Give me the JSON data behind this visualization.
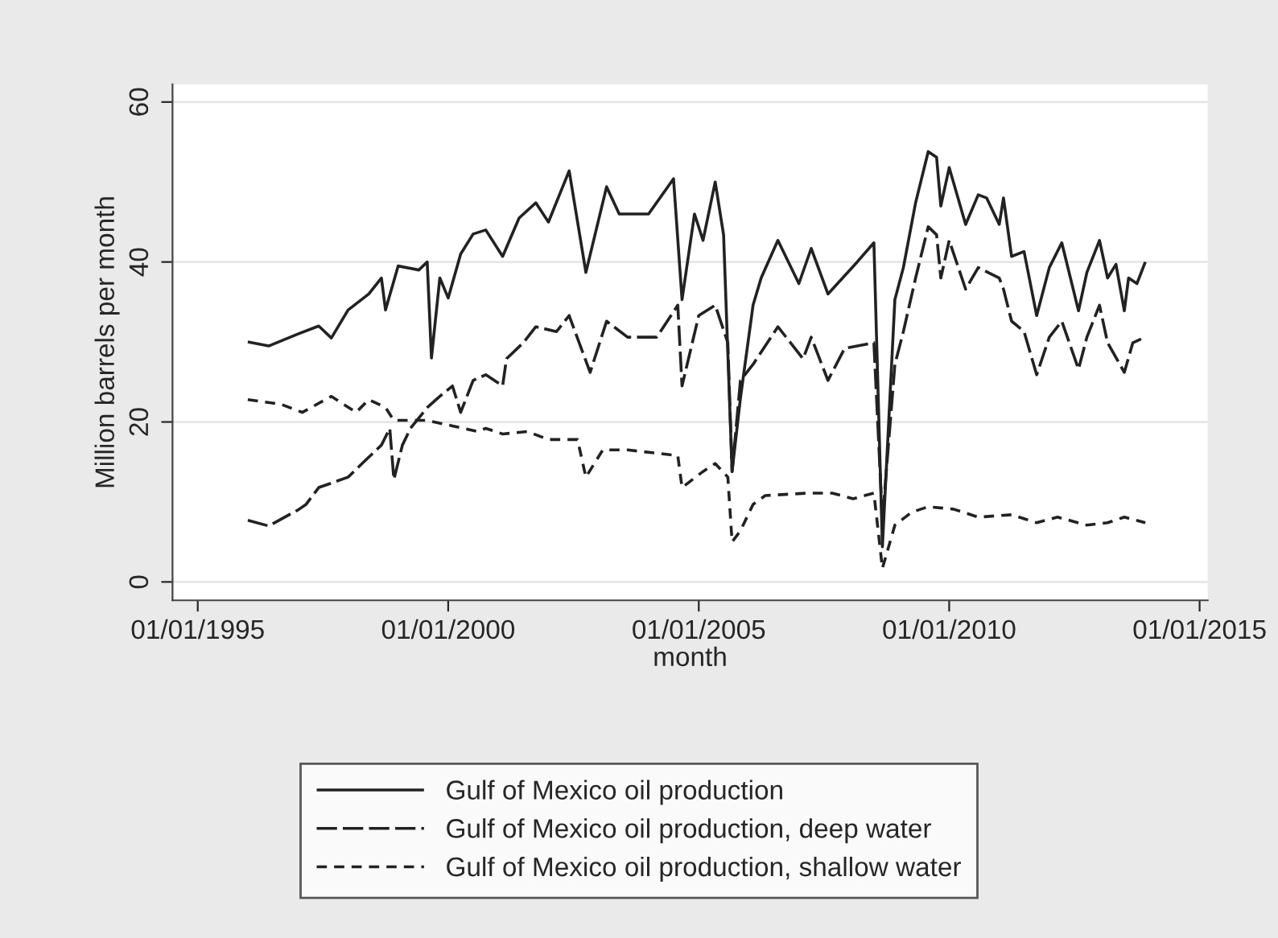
{
  "chart_data": {
    "type": "line",
    "xlabel": "month",
    "ylabel": "Million barrels per month",
    "xlim": [
      "1994-07",
      "2015-03"
    ],
    "ylim": [
      -2.3,
      62.2
    ],
    "xticks": [
      {
        "value": "1995-01-01",
        "label": "01/01/1995"
      },
      {
        "value": "2000-01-01",
        "label": "01/01/2000"
      },
      {
        "value": "2005-01-01",
        "label": "01/01/2005"
      },
      {
        "value": "2010-01-01",
        "label": "01/01/2010"
      },
      {
        "value": "2015-01-01",
        "label": "01/01/2015"
      }
    ],
    "yticks": [
      0,
      20,
      40,
      60
    ],
    "grid": "y",
    "legend": "bottom",
    "series": [
      {
        "name": "Gulf of Mexico oil production",
        "color": "#222222",
        "line_style": "solid",
        "x": [
          "1996-01",
          "1996-06",
          "1997-01",
          "1997-06",
          "1997-09",
          "1998-01",
          "1998-06",
          "1998-09",
          "1998-10",
          "1999-01",
          "1999-06",
          "1999-08",
          "1999-09",
          "1999-11",
          "2000-01",
          "2000-04",
          "2000-07",
          "2000-10",
          "2001-02",
          "2001-06",
          "2001-10",
          "2002-01",
          "2002-06",
          "2002-10",
          "2003-03",
          "2003-06",
          "2004-01",
          "2004-07",
          "2004-09",
          "2004-12",
          "2005-02",
          "2005-05",
          "2005-07",
          "2005-09",
          "2005-11",
          "2006-02",
          "2006-04",
          "2006-08",
          "2007-01",
          "2007-04",
          "2007-08",
          "2008-03",
          "2008-07",
          "2008-09",
          "2008-12",
          "2009-02",
          "2009-05",
          "2009-08",
          "2009-10",
          "2009-11",
          "2010-01",
          "2010-05",
          "2010-08",
          "2010-10",
          "2011-01",
          "2011-02",
          "2011-04",
          "2011-07",
          "2011-10",
          "2012-01",
          "2012-04",
          "2012-08",
          "2012-10",
          "2013-01",
          "2013-03",
          "2013-05",
          "2013-07",
          "2013-08",
          "2013-10",
          "2013-12"
        ],
        "values": [
          30,
          29.5,
          31,
          32,
          30.5,
          34,
          36,
          38,
          34,
          39.5,
          39,
          40,
          28,
          38,
          35.5,
          41,
          43.5,
          44,
          40.7,
          45.5,
          47.4,
          45,
          51.4,
          38.7,
          49.4,
          46,
          46,
          50.4,
          35.3,
          46,
          42.7,
          50,
          43.4,
          13.8,
          23,
          34.6,
          38,
          42.7,
          37.3,
          41.7,
          36,
          40,
          42.4,
          4.4,
          35.3,
          39.3,
          47.4,
          53.8,
          53.1,
          47,
          51.8,
          44.7,
          48.4,
          48,
          44.7,
          48,
          40.7,
          41.3,
          33.3,
          39.3,
          42.4,
          33.9,
          38.7,
          42.7,
          38,
          39.7,
          33.9,
          38,
          37.3,
          40
        ]
      },
      {
        "name": "Gulf of Mexico oil production, deep water",
        "color": "#222222",
        "line_style": "longdash",
        "x": [
          "1996-01",
          "1996-06",
          "1997-01",
          "1997-03",
          "1997-06",
          "1998-01",
          "1998-05",
          "1998-09",
          "1998-11",
          "1998-12",
          "1999-02",
          "1999-04",
          "1999-08",
          "1999-11",
          "2000-02",
          "2000-04",
          "2000-07",
          "2000-10",
          "2001-02",
          "2001-03",
          "2001-07",
          "2001-10",
          "2002-03",
          "2002-06",
          "2002-11",
          "2003-03",
          "2003-08",
          "2004-03",
          "2004-08",
          "2004-09",
          "2005-01",
          "2005-05",
          "2005-08",
          "2005-09",
          "2005-11",
          "2006-02",
          "2006-08",
          "2007-02",
          "2007-04",
          "2007-08",
          "2007-12",
          "2008-07",
          "2008-09",
          "2008-12",
          "2009-02",
          "2009-05",
          "2009-08",
          "2009-10",
          "2009-11",
          "2010-01",
          "2010-05",
          "2010-08",
          "2011-01",
          "2011-02",
          "2011-04",
          "2011-07",
          "2011-10",
          "2012-01",
          "2012-04",
          "2012-08",
          "2012-10",
          "2013-01",
          "2013-03",
          "2013-07",
          "2013-09",
          "2013-12"
        ],
        "values": [
          7.7,
          7,
          9,
          9.7,
          11.8,
          13.1,
          15.1,
          17.1,
          19.2,
          12.8,
          17.1,
          19.2,
          21.8,
          23.2,
          24.5,
          21.2,
          25.2,
          25.9,
          24.5,
          27.9,
          29.9,
          31.9,
          31.3,
          33.3,
          26.2,
          32.6,
          30.6,
          30.6,
          34.6,
          24.5,
          33.3,
          34.6,
          29.9,
          13.8,
          25.2,
          27.2,
          31.9,
          27.9,
          30.6,
          25.2,
          29.2,
          29.9,
          7.7,
          27.2,
          31.3,
          38,
          44.4,
          43.4,
          38,
          42.7,
          36.6,
          39.3,
          38,
          36.6,
          32.6,
          31.3,
          25.9,
          30.6,
          32.6,
          26.6,
          30.6,
          34.6,
          29.9,
          26.2,
          29.9,
          30.6
        ]
      },
      {
        "name": "Gulf of Mexico oil production, shallow water",
        "color": "#222222",
        "line_style": "dashed",
        "x": [
          "1996-01",
          "1996-09",
          "1997-02",
          "1997-09",
          "1998-03",
          "1998-06",
          "1998-10",
          "1998-12",
          "1999-08",
          "2000-02",
          "2000-08",
          "2000-10",
          "2001-02",
          "2001-08",
          "2002-01",
          "2002-08",
          "2002-10",
          "2003-02",
          "2003-08",
          "2004-08",
          "2004-09",
          "2005-02",
          "2005-05",
          "2005-08",
          "2005-09",
          "2005-11",
          "2006-02",
          "2006-05",
          "2007-03",
          "2007-09",
          "2008-02",
          "2008-07",
          "2008-09",
          "2008-12",
          "2009-04",
          "2009-08",
          "2010-02",
          "2010-08",
          "2011-04",
          "2011-10",
          "2012-03",
          "2012-10",
          "2013-03",
          "2013-07",
          "2013-12"
        ],
        "values": [
          22.8,
          22.2,
          21.2,
          23.2,
          21.2,
          22.8,
          21.8,
          20.2,
          20.2,
          19.5,
          18.8,
          19.2,
          18.5,
          18.8,
          17.8,
          17.8,
          13.1,
          16.5,
          16.5,
          15.8,
          11.8,
          13.8,
          14.8,
          13.1,
          5,
          6.4,
          9.7,
          10.8,
          11.1,
          11.1,
          10.4,
          11.1,
          1.7,
          7.1,
          8.7,
          9.4,
          9.1,
          8.1,
          8.4,
          7.4,
          8.1,
          7.1,
          7.4,
          8.1,
          7.4
        ]
      }
    ]
  }
}
